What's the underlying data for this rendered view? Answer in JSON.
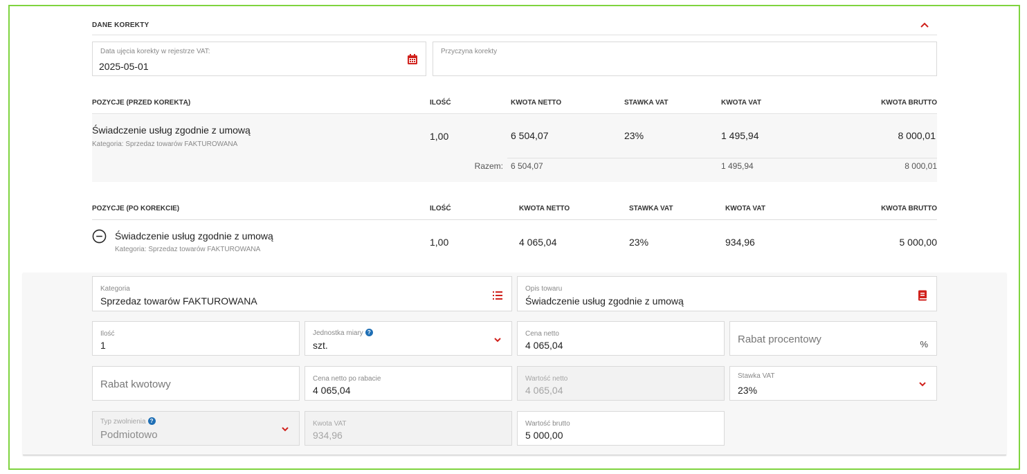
{
  "section": {
    "title": "DANE KOREKTY"
  },
  "correction": {
    "date_label": "Data ujęcia korekty w rejestrze VAT:",
    "date_value": "2025-05-01",
    "reason_label": "Przyczyna korekty",
    "reason_value": ""
  },
  "before": {
    "headers": [
      "POZYCJE (PRZED KOREKTĄ)",
      "ILOŚĆ",
      "KWOTA NETTO",
      "STAWKA VAT",
      "KWOTA VAT",
      "KWOTA BRUTTO"
    ],
    "item": {
      "name": "Świadczenie usług zgodnie z umową",
      "category": "Kategoria: Sprzedaz towarów FAKTUROWANA",
      "qty": "1,00",
      "net": "6 504,07",
      "vat_rate": "23%",
      "vat": "1 495,94",
      "gross": "8 000,01"
    },
    "totals": {
      "label": "Razem:",
      "net": "6 504,07",
      "vat": "1 495,94",
      "gross": "8 000,01"
    }
  },
  "after": {
    "headers": [
      "POZYCJE (PO KOREKCIE)",
      "ILOŚĆ",
      "KWOTA NETTO",
      "STAWKA VAT",
      "KWOTA VAT",
      "KWOTA BRUTTO"
    ],
    "item": {
      "name": "Świadczenie usług zgodnie z umową",
      "category": "Kategoria: Sprzedaz towarów FAKTUROWANA",
      "qty": "1,00",
      "net": "4 065,04",
      "vat_rate": "23%",
      "vat": "934,96",
      "gross": "5 000,00"
    }
  },
  "form": {
    "category": {
      "label": "Kategoria",
      "value": "Sprzedaz towarów FAKTUROWANA"
    },
    "description": {
      "label": "Opis towaru",
      "value": "Świadczenie usług zgodnie z umową"
    },
    "quantity": {
      "label": "Ilość",
      "value": "1"
    },
    "unit": {
      "label": "Jednostka miary",
      "value": "szt."
    },
    "net_price": {
      "label": "Cena netto",
      "value": "4 065,04"
    },
    "percent_discount": {
      "placeholder": "Rabat procentowy",
      "suffix": "%"
    },
    "amount_discount": {
      "placeholder": "Rabat kwotowy"
    },
    "net_after_discount": {
      "label": "Cena netto po rabacie",
      "value": "4 065,04"
    },
    "net_value": {
      "label": "Wartość netto",
      "value": "4 065,04"
    },
    "vat_rate": {
      "label": "Stawka VAT",
      "value": "23%"
    },
    "exemption_type": {
      "label": "Typ zwolnienia",
      "value": "Podmiotowo"
    },
    "vat_amount": {
      "label": "Kwota VAT",
      "value": "934,96"
    },
    "gross_value": {
      "label": "Wartość brutto",
      "value": "5 000,00"
    }
  },
  "icons": {
    "collapse": "chevron-up-icon",
    "calendar": "calendar-icon",
    "list": "list-icon",
    "book": "book-icon",
    "dropdown": "chevron-down-icon",
    "help": "help-icon",
    "remove": "minus-circle-icon"
  },
  "colors": {
    "accent": "#d0211c",
    "help": "#1f6fb5",
    "frame": "#7fd43f"
  }
}
